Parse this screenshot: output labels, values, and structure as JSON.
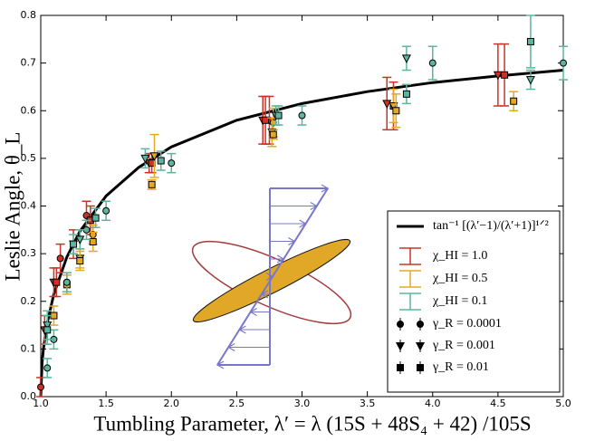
{
  "chart_data": {
    "type": "scatter",
    "xlabel": "Tumbling Parameter, λ′ = λ (15S + 48S₄ + 42) /105S",
    "ylabel": "Leslie Angle, θ_L",
    "xlim": [
      1.0,
      5.0
    ],
    "ylim": [
      0.0,
      0.8
    ],
    "xticks": [
      {
        "value": 1.0,
        "label": "1.0"
      },
      1.5,
      {
        "value": 2.0,
        "label": "2.0"
      },
      2.5,
      {
        "value": 3.0,
        "label": "3.0"
      },
      3.5,
      {
        "value": 4.0,
        "label": "4.0"
      },
      4.5,
      {
        "value": 5.0,
        "label": "5.0"
      }
    ],
    "yticks": [
      {
        "value": 0.0,
        "label": "0.0"
      },
      0.1,
      0.2,
      0.3,
      0.4,
      0.5,
      0.6,
      0.7,
      0.8
    ],
    "grid": false,
    "legend_position": "lower right",
    "curve": {
      "name": "tan⁻¹ [(λ′−1)/(λ′+1)]¹ᐟ²",
      "color": "#000000",
      "x": [
        1.0,
        1.01,
        1.02,
        1.05,
        1.1,
        1.2,
        1.3,
        1.5,
        1.75,
        2.0,
        2.5,
        3.0,
        3.5,
        4.0,
        4.5,
        5.0
      ],
      "values": [
        0.0,
        0.0704,
        0.0992,
        0.155,
        0.215,
        0.293,
        0.347,
        0.421,
        0.481,
        0.524,
        0.58,
        0.615,
        0.64,
        0.659,
        0.673,
        0.685
      ]
    },
    "series": [
      {
        "name": "χ_HI = 1.0",
        "color": "#cc3326",
        "groups": [
          {
            "marker": "circle",
            "x": [
              1.0,
              1.15,
              1.35,
              2.75
            ],
            "values": [
              0.02,
              0.29,
              0.38,
              0.58
            ],
            "errors": [
              0.02,
              0.03,
              0.03,
              0.05
            ]
          },
          {
            "marker": "triangle",
            "x": [
              1.03,
              1.1,
              1.25,
              1.83,
              2.7,
              3.65,
              4.5
            ],
            "values": [
              0.14,
              0.24,
              0.32,
              0.49,
              0.58,
              0.615,
              0.675
            ],
            "errors": [
              0.03,
              0.03,
              0.03,
              0.02,
              0.05,
              0.055,
              0.065
            ]
          },
          {
            "marker": "square",
            "x": [
              1.12,
              1.38,
              1.85,
              2.72,
              3.7,
              4.55
            ],
            "values": [
              0.24,
              0.37,
              0.49,
              0.58,
              0.61,
              0.675
            ],
            "errors": [
              0.03,
              0.03,
              0.02,
              0.05,
              0.05,
              0.065
            ]
          }
        ]
      },
      {
        "name": "χ_HI = 0.5",
        "color": "#e5a823",
        "groups": [
          {
            "marker": "circle",
            "x": [
              1.2,
              1.4,
              2.78
            ],
            "values": [
              0.24,
              0.34,
              0.575
            ],
            "errors": [
              0.02,
              0.02,
              0.03
            ]
          },
          {
            "marker": "triangle",
            "x": [
              1.3,
              1.87,
              2.77,
              3.7
            ],
            "values": [
              0.29,
              0.505,
              0.555,
              0.61
            ],
            "errors": [
              0.02,
              0.045,
              0.03,
              0.035
            ]
          },
          {
            "marker": "square",
            "x": [
              1.1,
              1.2,
              1.3,
              1.4,
              1.85,
              2.78,
              3.72,
              4.62
            ],
            "values": [
              0.17,
              0.235,
              0.285,
              0.325,
              0.445,
              0.55,
              0.6,
              0.62
            ],
            "errors": [
              0.02,
              0.02,
              0.02,
              0.02,
              0.01,
              0.01,
              0.035,
              0.02
            ]
          }
        ]
      },
      {
        "name": "χ_HI = 0.1",
        "color": "#5cb59e",
        "groups": [
          {
            "marker": "circle",
            "x": [
              1.05,
              1.1,
              1.2,
              1.35,
              1.5,
              2.0,
              3.0,
              4.0,
              5.0
            ],
            "values": [
              0.06,
              0.12,
              0.24,
              0.35,
              0.39,
              0.49,
              0.59,
              0.7,
              0.7
            ],
            "errors": [
              0.02,
              0.02,
              0.02,
              0.02,
              0.02,
              0.02,
              0.02,
              0.035,
              0.035
            ]
          },
          {
            "marker": "triangle",
            "x": [
              1.05,
              1.3,
              1.8,
              2.8,
              3.8,
              4.75
            ],
            "values": [
              0.15,
              0.33,
              0.5,
              0.59,
              0.71,
              0.665
            ],
            "errors": [
              0.03,
              0.02,
              0.02,
              0.02,
              0.025,
              0.02
            ]
          },
          {
            "marker": "square",
            "x": [
              1.05,
              1.25,
              1.42,
              1.92,
              2.82,
              3.8,
              4.75
            ],
            "values": [
              0.14,
              0.32,
              0.375,
              0.495,
              0.59,
              0.635,
              0.745
            ],
            "errors": [
              0.03,
              0.02,
              0.02,
              0.02,
              0.02,
              0.02,
              0.055
            ]
          }
        ]
      }
    ],
    "marker_legend": [
      {
        "label": "γ_R = 0.0001",
        "marker": "circle"
      },
      {
        "label": "γ_R = 0.001",
        "marker": "triangle"
      },
      {
        "label": "γ_R = 0.01",
        "marker": "square"
      }
    ]
  }
}
